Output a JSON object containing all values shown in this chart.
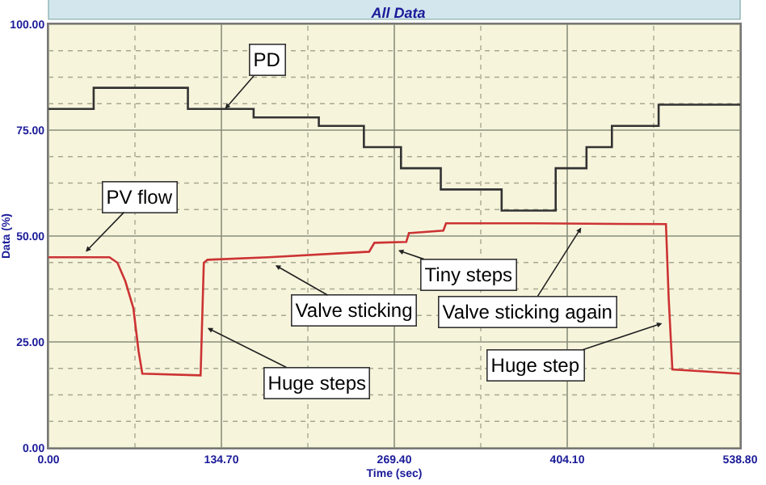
{
  "chart_data": {
    "type": "line",
    "title": "All Data",
    "xlabel": "Time (sec)",
    "ylabel": "Data (%)",
    "xlim": [
      0,
      538.8
    ],
    "ylim": [
      0,
      100
    ],
    "xticks": [
      {
        "value": 0,
        "label": "0.00"
      },
      {
        "value": 67.35,
        "label": null
      },
      {
        "value": 134.7,
        "label": "134.70"
      },
      {
        "value": 202.05,
        "label": null
      },
      {
        "value": 269.4,
        "label": "269.40"
      },
      {
        "value": 336.75,
        "label": null
      },
      {
        "value": 404.1,
        "label": "404.10"
      },
      {
        "value": 471.45,
        "label": null
      },
      {
        "value": 538.8,
        "label": "538.80"
      }
    ],
    "yticks": [
      {
        "value": 0,
        "label": "0.00"
      },
      {
        "value": 6.25,
        "label": null
      },
      {
        "value": 12.5,
        "label": null
      },
      {
        "value": 18.75,
        "label": null
      },
      {
        "value": 25,
        "label": "25.00"
      },
      {
        "value": 31.25,
        "label": null
      },
      {
        "value": 37.5,
        "label": null
      },
      {
        "value": 43.75,
        "label": null
      },
      {
        "value": 50,
        "label": "50.00"
      },
      {
        "value": 56.25,
        "label": null
      },
      {
        "value": 62.5,
        "label": null
      },
      {
        "value": 68.75,
        "label": null
      },
      {
        "value": 75,
        "label": "75.00"
      },
      {
        "value": 81.25,
        "label": null
      },
      {
        "value": 87.5,
        "label": null
      },
      {
        "value": 93.75,
        "label": null
      },
      {
        "value": 100,
        "label": "100.00"
      }
    ],
    "grid": true,
    "marker": "none",
    "line_style": "solid",
    "series": [
      {
        "type": "step",
        "color": "#333333",
        "x": [
          0,
          35.2,
          108.6,
          159.8,
          210.6,
          245.7,
          274.6,
          305.6,
          353.0,
          395.1,
          419.1,
          438.9,
          475.3,
          538.8
        ],
        "values": [
          80,
          85,
          80,
          78,
          76,
          71,
          66,
          61,
          56,
          66,
          71,
          76,
          81,
          81
        ]
      },
      {
        "color": "#cc3333",
        "x": [
          0,
          47.5,
          53.7,
          59.9,
          66.1,
          70.2,
          73.1,
          118.5,
          121.0,
          123.9,
          171.4,
          249.8,
          253.9,
          278.7,
          280.8,
          307.6,
          309.7,
          377.8,
          481.0,
          483.1,
          486.0,
          538.8
        ],
        "values": [
          45,
          45,
          43.7,
          39.3,
          33,
          22.8,
          17.5,
          17.1,
          43.7,
          44.4,
          45,
          46.3,
          48.4,
          48.6,
          50.7,
          51.3,
          53,
          53,
          52.8,
          35.6,
          18.5,
          17.5
        ]
      }
    ],
    "annotations": [
      {
        "text": "PD",
        "x": 137.6,
        "y": 80
      },
      {
        "text": "PV flow",
        "x": 29,
        "y": 46.3
      },
      {
        "text": "Huge steps",
        "x": 123.9,
        "y": 28.3
      },
      {
        "text": "Valve sticking",
        "x": 176.8,
        "y": 43.1
      },
      {
        "text": "Tiny steps",
        "x": 272.5,
        "y": 46.6
      },
      {
        "text": "Valve sticking again",
        "x": 415,
        "y": 52
      },
      {
        "text": "Huge step",
        "x": 478,
        "y": 29.4
      }
    ]
  }
}
